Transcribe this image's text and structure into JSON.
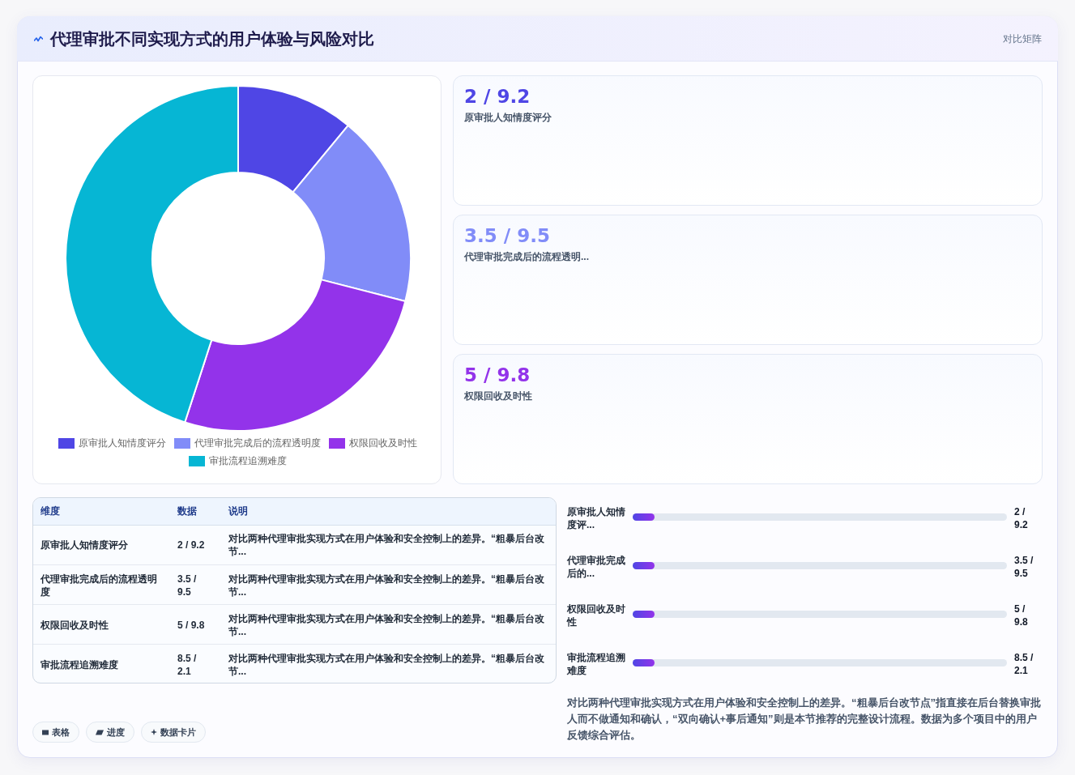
{
  "chart_data": [
    {
      "type": "other",
      "title": "代理审批不同实现方式的用户体验与风险对比",
      "subtitle": "对比矩阵"
    },
    {
      "type": "donut",
      "categories": [
        "原审批人知情度评分",
        "代理审批完成后的流程透明度",
        "权限回收及时性",
        "审批流程追溯难度"
      ],
      "values": [
        11,
        18,
        26,
        45
      ],
      "colors": [
        "#4f46e5",
        "#818cf8",
        "#9333ea",
        "#06b6d4"
      ],
      "legend": "bottom"
    },
    {
      "type": "other",
      "annotations": [
        "2 / 9.2",
        "原审批人知情度评分",
        "3.5 / 9.5",
        "代理审批完成后的流程透明...",
        "5 / 9.8",
        "权限回收及时性"
      ]
    },
    {
      "type": "other",
      "annotations": [
        "维度",
        "数据",
        "说明",
        "原审批人知情度评分",
        "2 / 9.2",
        "对比两种代理审批实现方式在用户体验和安全控制上的差异。“粗暴后台改节...",
        "代理审批完成后的流程透明度",
        "3.5 / 9.5",
        "对比两种代理审批实现方式在用户体验和安全控制上的差异。“粗暴后台改节...",
        "权限回收及时性",
        "5 / 9.8",
        "对比两种代理审批实现方式在用户体验和安全控制上的差异。“粗暴后台改节...",
        "审批流程追溯难度",
        "8.5 / 2.1",
        "对比两种代理审批实现方式在用户体验和安全控制上的差异。“粗暴后台改节..."
      ]
    },
    {
      "type": "other",
      "annotations": [
        "原审批人知情度评...",
        "2 / 9.2",
        "代理审批完成后的...",
        "3.5 / 9.5",
        "权限回收及时性",
        "5 / 9.8",
        "审批流程追溯难度",
        "8.5 / 2.1",
        "对比两种代理审批实现方式在用户体验和安全控制上的差异。“粗暴后台改节点”指直接在后台替换审批人而不做通知和确认，“双向确认+事后通知”则是本节推荐的完整设计流程。数据为多个项目中的用户反馈综合评估。"
      ]
    },
    {
      "type": "other",
      "annotations": [
        "表格",
        "进度",
        "数据卡片"
      ]
    }
  ]
}
